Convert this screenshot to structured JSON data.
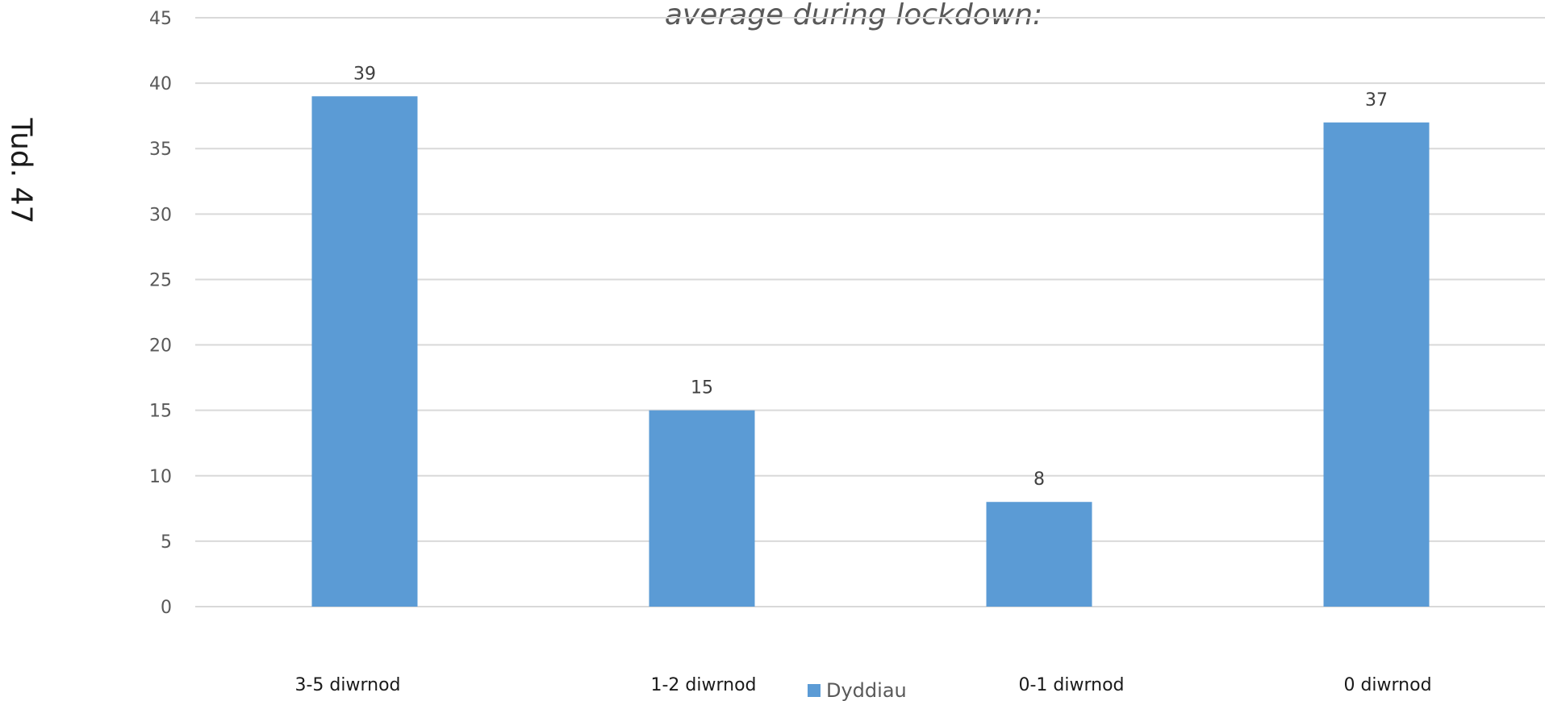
{
  "page_label": "Tud. 47",
  "chart_data": {
    "type": "bar",
    "title": "average during lockdown:",
    "categories": [
      "3-5 diwrnod",
      "1-2 diwrnod",
      "0-1 diwrnod",
      "0 diwrnod"
    ],
    "series": [
      {
        "name": "Dyddiau",
        "values": [
          39,
          15,
          8,
          37
        ],
        "color": "#5b9bd5"
      }
    ],
    "ylim": [
      0,
      45
    ],
    "yticks": [
      0,
      5,
      10,
      15,
      20,
      25,
      30,
      35,
      40,
      45
    ],
    "grid": true,
    "grid_color": "#d9d9d9",
    "legend": "bottom",
    "data_labels": true
  }
}
